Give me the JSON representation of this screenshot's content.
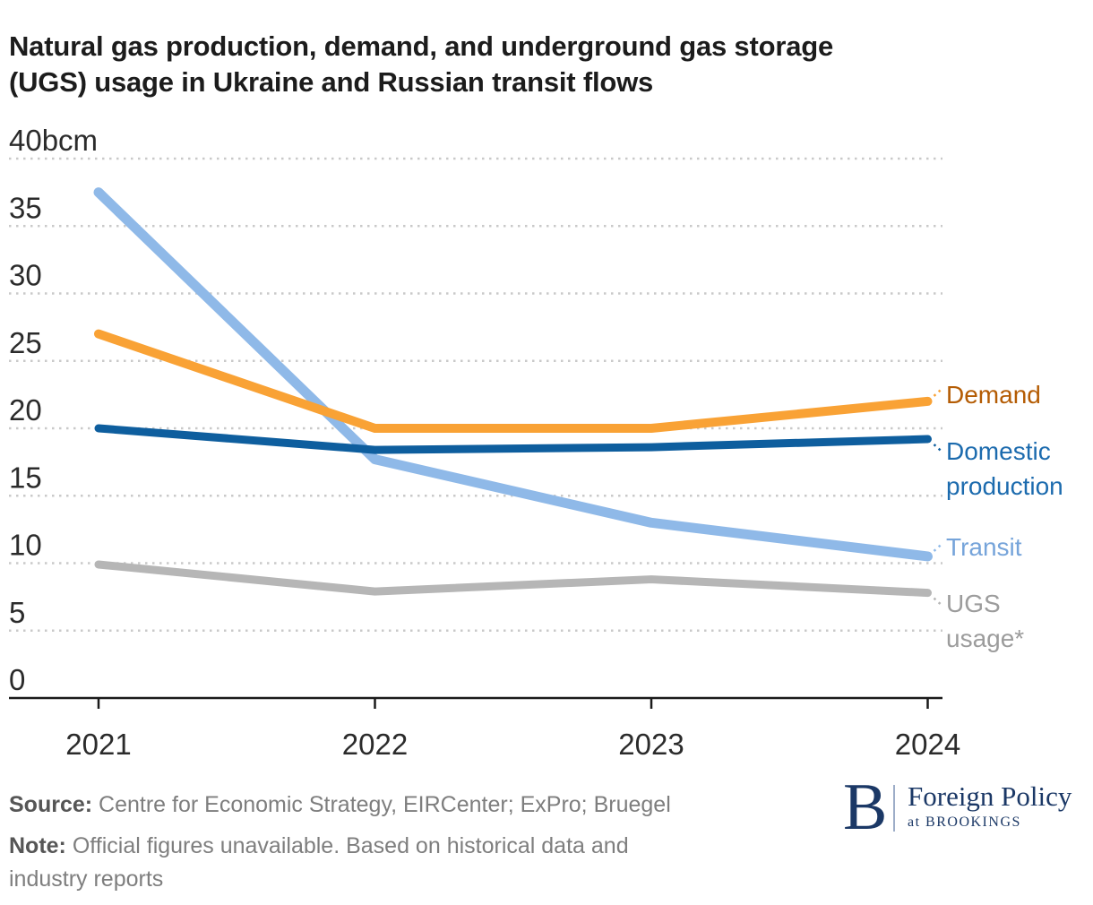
{
  "title": "Natural gas production, demand, and underground gas storage\n(UGS) usage in Ukraine and Russian transit flows",
  "chart_data": {
    "type": "line",
    "title": "Natural gas production, demand, and underground gas storage (UGS) usage in Ukraine and Russian transit flows",
    "unit": "bcm",
    "x_categories": [
      "2021",
      "2022",
      "2023",
      "2024"
    ],
    "ylim": [
      0,
      40
    ],
    "yticks": [
      0,
      5,
      10,
      15,
      20,
      25,
      30,
      35,
      40
    ],
    "ytick_top_label": "40bcm",
    "grid": "horizontal-dotted",
    "legend_position": "right-edge-direct-labels",
    "style": {
      "axis_color": "#1a1a1a",
      "grid_color": "#c9c9c9",
      "tick_text_color": "#2b2b2b"
    },
    "series": [
      {
        "name": "Demand",
        "label_text": "Demand",
        "color": "#F9A235",
        "label_color": "#B45C04",
        "values": [
          27,
          20,
          20,
          22
        ]
      },
      {
        "name": "Domestic production",
        "label_text": "Domestic\nproduction",
        "color": "#0E5E9E",
        "label_color": "#1C6BAE",
        "values": [
          20,
          18.4,
          18.6,
          19.2
        ]
      },
      {
        "name": "Transit",
        "label_text": "Transit",
        "color": "#8FB9E8",
        "label_color": "#76A4DA",
        "values": [
          37.5,
          17.7,
          13,
          10.5
        ]
      },
      {
        "name": "UGS usage*",
        "label_text": "UGS\nusage*",
        "color": "#B6B6B6",
        "label_color": "#9C9C9C",
        "values": [
          9.9,
          7.9,
          8.8,
          7.8
        ]
      }
    ]
  },
  "footer": {
    "source_label": "Source:",
    "source_text": "Centre for Economic Strategy, EIRCenter; ExPro; Bruegel",
    "note_label": "Note:",
    "note_text": "Official figures unavailable. Based on historical data and\nindustry reports"
  },
  "logo": {
    "monogram": "B",
    "name": "Foreign Policy",
    "subtitle": "at BROOKINGS"
  }
}
